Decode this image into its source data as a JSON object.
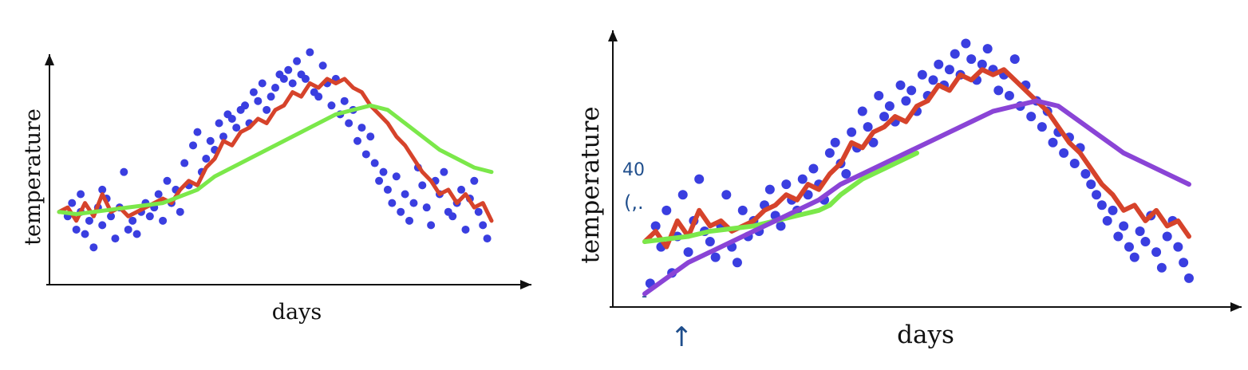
{
  "colors": {
    "dots": "#3a3ee0",
    "red": "#d6432b",
    "green": "#7be84a",
    "purple": "#8a44d6",
    "ink": "#1f4e8c",
    "axis": "#111111"
  },
  "chart_data": [
    {
      "type": "scatter",
      "title": "",
      "xlabel": "days",
      "ylabel": "temperature",
      "xlim": [
        0,
        100
      ],
      "ylim": [
        0,
        100
      ],
      "grid": false,
      "series": [
        {
          "name": "",
          "kind": "scatter",
          "color": "#3a3ee0",
          "x": [
            2,
            3,
            4,
            5,
            5,
            6,
            7,
            8,
            9,
            10,
            10,
            11,
            12,
            13,
            14,
            15,
            16,
            17,
            18,
            19,
            20,
            21,
            22,
            23,
            24,
            25,
            26,
            27,
            28,
            29,
            30,
            31,
            32,
            33,
            34,
            35,
            36,
            37,
            38,
            39,
            40,
            41,
            42,
            43,
            44,
            45,
            46,
            47,
            48,
            49,
            50,
            51,
            52,
            53,
            54,
            55,
            56,
            57,
            58,
            59,
            60,
            61,
            62,
            63,
            64,
            65,
            66,
            67,
            68,
            69,
            70,
            71,
            72,
            73,
            74,
            75,
            76,
            77,
            78,
            79,
            80,
            81,
            82,
            83,
            84,
            85,
            86,
            87,
            88,
            89,
            90,
            91,
            92,
            93,
            94,
            95,
            96,
            97,
            98,
            99
          ],
          "y": [
            24,
            30,
            18,
            26,
            34,
            16,
            22,
            10,
            28,
            36,
            20,
            32,
            24,
            14,
            28,
            44,
            18,
            22,
            16,
            26,
            30,
            24,
            28,
            34,
            22,
            40,
            30,
            36,
            26,
            48,
            38,
            56,
            62,
            44,
            50,
            58,
            54,
            66,
            60,
            70,
            68,
            64,
            72,
            74,
            66,
            80,
            76,
            84,
            72,
            78,
            82,
            88,
            86,
            90,
            84,
            94,
            88,
            86,
            98,
            80,
            78,
            92,
            84,
            74,
            86,
            70,
            76,
            66,
            72,
            58,
            64,
            52,
            60,
            48,
            40,
            44,
            36,
            30,
            42,
            26,
            34,
            22,
            30,
            46,
            38,
            28,
            20,
            40,
            34,
            44,
            26,
            24,
            30,
            36,
            18,
            32,
            40,
            26,
            20,
            14
          ]
        },
        {
          "name": "",
          "kind": "line",
          "color": "#d6432b",
          "x": [
            0,
            2,
            4,
            6,
            8,
            10,
            12,
            14,
            16,
            18,
            20,
            22,
            24,
            26,
            28,
            30,
            32,
            34,
            36,
            38,
            40,
            42,
            44,
            46,
            48,
            50,
            52,
            54,
            56,
            58,
            60,
            62,
            64,
            66,
            68,
            70,
            72,
            74,
            76,
            78,
            80,
            82,
            84,
            86,
            88,
            90,
            92,
            94,
            96,
            98,
            100
          ],
          "y": [
            26,
            28,
            22,
            30,
            24,
            34,
            26,
            28,
            24,
            26,
            28,
            30,
            32,
            30,
            36,
            40,
            38,
            46,
            50,
            58,
            56,
            62,
            64,
            68,
            66,
            72,
            74,
            80,
            78,
            84,
            82,
            86,
            84,
            86,
            82,
            80,
            74,
            70,
            66,
            60,
            56,
            50,
            44,
            40,
            34,
            36,
            30,
            34,
            28,
            30,
            22
          ]
        },
        {
          "name": "",
          "kind": "line",
          "color": "#7be84a",
          "x": [
            0,
            4,
            8,
            12,
            16,
            20,
            24,
            28,
            32,
            36,
            40,
            44,
            48,
            52,
            56,
            60,
            64,
            68,
            72,
            76,
            80,
            84,
            88,
            92,
            96,
            100
          ],
          "y": [
            26,
            25,
            26,
            27,
            28,
            29,
            30,
            33,
            36,
            42,
            46,
            50,
            54,
            58,
            62,
            66,
            70,
            72,
            74,
            72,
            66,
            60,
            54,
            50,
            46,
            44
          ]
        }
      ]
    },
    {
      "type": "scatter",
      "title": "",
      "xlabel": "days",
      "ylabel": "temperature",
      "xlim": [
        0,
        100
      ],
      "ylim": [
        0,
        100
      ],
      "grid": false,
      "annotations": [
        "40",
        "(,.",
        "-",
        "↑"
      ],
      "series": [
        {
          "name": "",
          "kind": "scatter",
          "color": "#3a3ee0",
          "x": [
            1,
            2,
            3,
            4,
            5,
            6,
            7,
            8,
            9,
            10,
            11,
            12,
            13,
            14,
            15,
            16,
            17,
            18,
            19,
            20,
            21,
            22,
            23,
            24,
            25,
            26,
            27,
            28,
            29,
            30,
            31,
            32,
            33,
            34,
            35,
            36,
            37,
            38,
            39,
            40,
            41,
            42,
            43,
            44,
            45,
            46,
            47,
            48,
            49,
            50,
            51,
            52,
            53,
            54,
            55,
            56,
            57,
            58,
            59,
            60,
            61,
            62,
            63,
            64,
            65,
            66,
            67,
            68,
            69,
            70,
            71,
            72,
            73,
            74,
            75,
            76,
            77,
            78,
            79,
            80,
            81,
            82,
            83,
            84,
            85,
            86,
            87,
            88,
            89,
            90,
            91,
            92,
            93,
            94,
            95,
            96,
            97,
            98,
            99,
            100
          ],
          "y": [
            6,
            28,
            20,
            34,
            10,
            24,
            40,
            18,
            30,
            46,
            26,
            22,
            16,
            28,
            40,
            20,
            14,
            34,
            24,
            30,
            26,
            36,
            42,
            32,
            28,
            44,
            38,
            34,
            46,
            40,
            50,
            44,
            38,
            56,
            60,
            52,
            48,
            64,
            58,
            72,
            66,
            60,
            78,
            70,
            74,
            68,
            82,
            76,
            80,
            72,
            86,
            78,
            84,
            90,
            82,
            88,
            94,
            86,
            98,
            92,
            84,
            90,
            96,
            88,
            80,
            86,
            78,
            92,
            74,
            82,
            70,
            76,
            66,
            72,
            60,
            64,
            56,
            62,
            52,
            58,
            48,
            44,
            40,
            36,
            30,
            34,
            24,
            28,
            20,
            16,
            26,
            22,
            32,
            18,
            12,
            24,
            30,
            20,
            14,
            8
          ]
        },
        {
          "name": "",
          "kind": "line",
          "color": "#d6432b",
          "x": [
            0,
            2,
            4,
            6,
            8,
            10,
            12,
            14,
            16,
            18,
            20,
            22,
            24,
            26,
            28,
            30,
            32,
            34,
            36,
            38,
            40,
            42,
            44,
            46,
            48,
            50,
            52,
            54,
            56,
            58,
            60,
            62,
            64,
            66,
            68,
            70,
            72,
            74,
            76,
            78,
            80,
            82,
            84,
            86,
            88,
            90,
            92,
            94,
            96,
            98,
            100
          ],
          "y": [
            22,
            26,
            20,
            30,
            24,
            34,
            28,
            30,
            26,
            28,
            30,
            34,
            36,
            40,
            38,
            44,
            42,
            48,
            52,
            60,
            58,
            64,
            66,
            70,
            68,
            74,
            76,
            82,
            80,
            86,
            84,
            88,
            86,
            88,
            84,
            80,
            76,
            72,
            66,
            60,
            56,
            50,
            44,
            40,
            34,
            36,
            30,
            34,
            28,
            30,
            24
          ]
        },
        {
          "name": "",
          "kind": "line",
          "color": "#7be84a",
          "x": [
            0,
            4,
            8,
            12,
            16,
            20,
            24,
            28,
            32,
            34,
            36,
            40,
            44,
            48,
            50
          ],
          "y": [
            22,
            23,
            24,
            26,
            27,
            28,
            30,
            32,
            34,
            36,
            40,
            46,
            50,
            54,
            56
          ]
        },
        {
          "name": "",
          "kind": "line",
          "color": "#8a44d6",
          "x": [
            0,
            4,
            8,
            12,
            16,
            20,
            24,
            28,
            32,
            36,
            40,
            44,
            48,
            52,
            56,
            60,
            64,
            68,
            72,
            76,
            80,
            84,
            88,
            92,
            96,
            100
          ],
          "y": [
            2,
            8,
            14,
            18,
            22,
            26,
            30,
            34,
            38,
            44,
            48,
            52,
            56,
            60,
            64,
            68,
            72,
            74,
            76,
            74,
            68,
            62,
            56,
            52,
            48,
            44
          ]
        }
      ]
    }
  ]
}
